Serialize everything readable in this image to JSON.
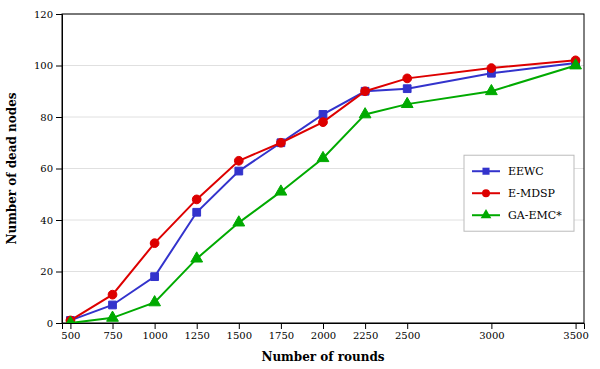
{
  "chart_data": {
    "type": "line",
    "xlabel": "Number of rounds",
    "ylabel": "Number of dead nodes",
    "x": [
      500,
      750,
      1000,
      1250,
      1500,
      1750,
      2000,
      2250,
      2500,
      3000,
      3500
    ],
    "series": [
      {
        "name": "EEWC",
        "color": "#3333cc",
        "marker": "square",
        "values": [
          1,
          7,
          18,
          43,
          59,
          70,
          81,
          90,
          91,
          97,
          101
        ]
      },
      {
        "name": "E-MDSP",
        "color": "#dd0000",
        "marker": "circle",
        "values": [
          1,
          11,
          31,
          48,
          63,
          70,
          78,
          90,
          95,
          99,
          102
        ]
      },
      {
        "name": "GA-EMC*",
        "color": "#00aa00",
        "marker": "triangle",
        "values": [
          0,
          2,
          8,
          25,
          39,
          51,
          64,
          81,
          85,
          90,
          100
        ]
      }
    ],
    "xlim": [
      450,
      3550
    ],
    "ylim": [
      0,
      120
    ],
    "xticks": [
      500,
      750,
      1000,
      1250,
      1500,
      1750,
      2000,
      2250,
      2500,
      3000,
      3500
    ],
    "yticks": [
      0,
      20,
      40,
      60,
      80,
      100,
      120
    ],
    "grid": "y",
    "legend": "right"
  }
}
